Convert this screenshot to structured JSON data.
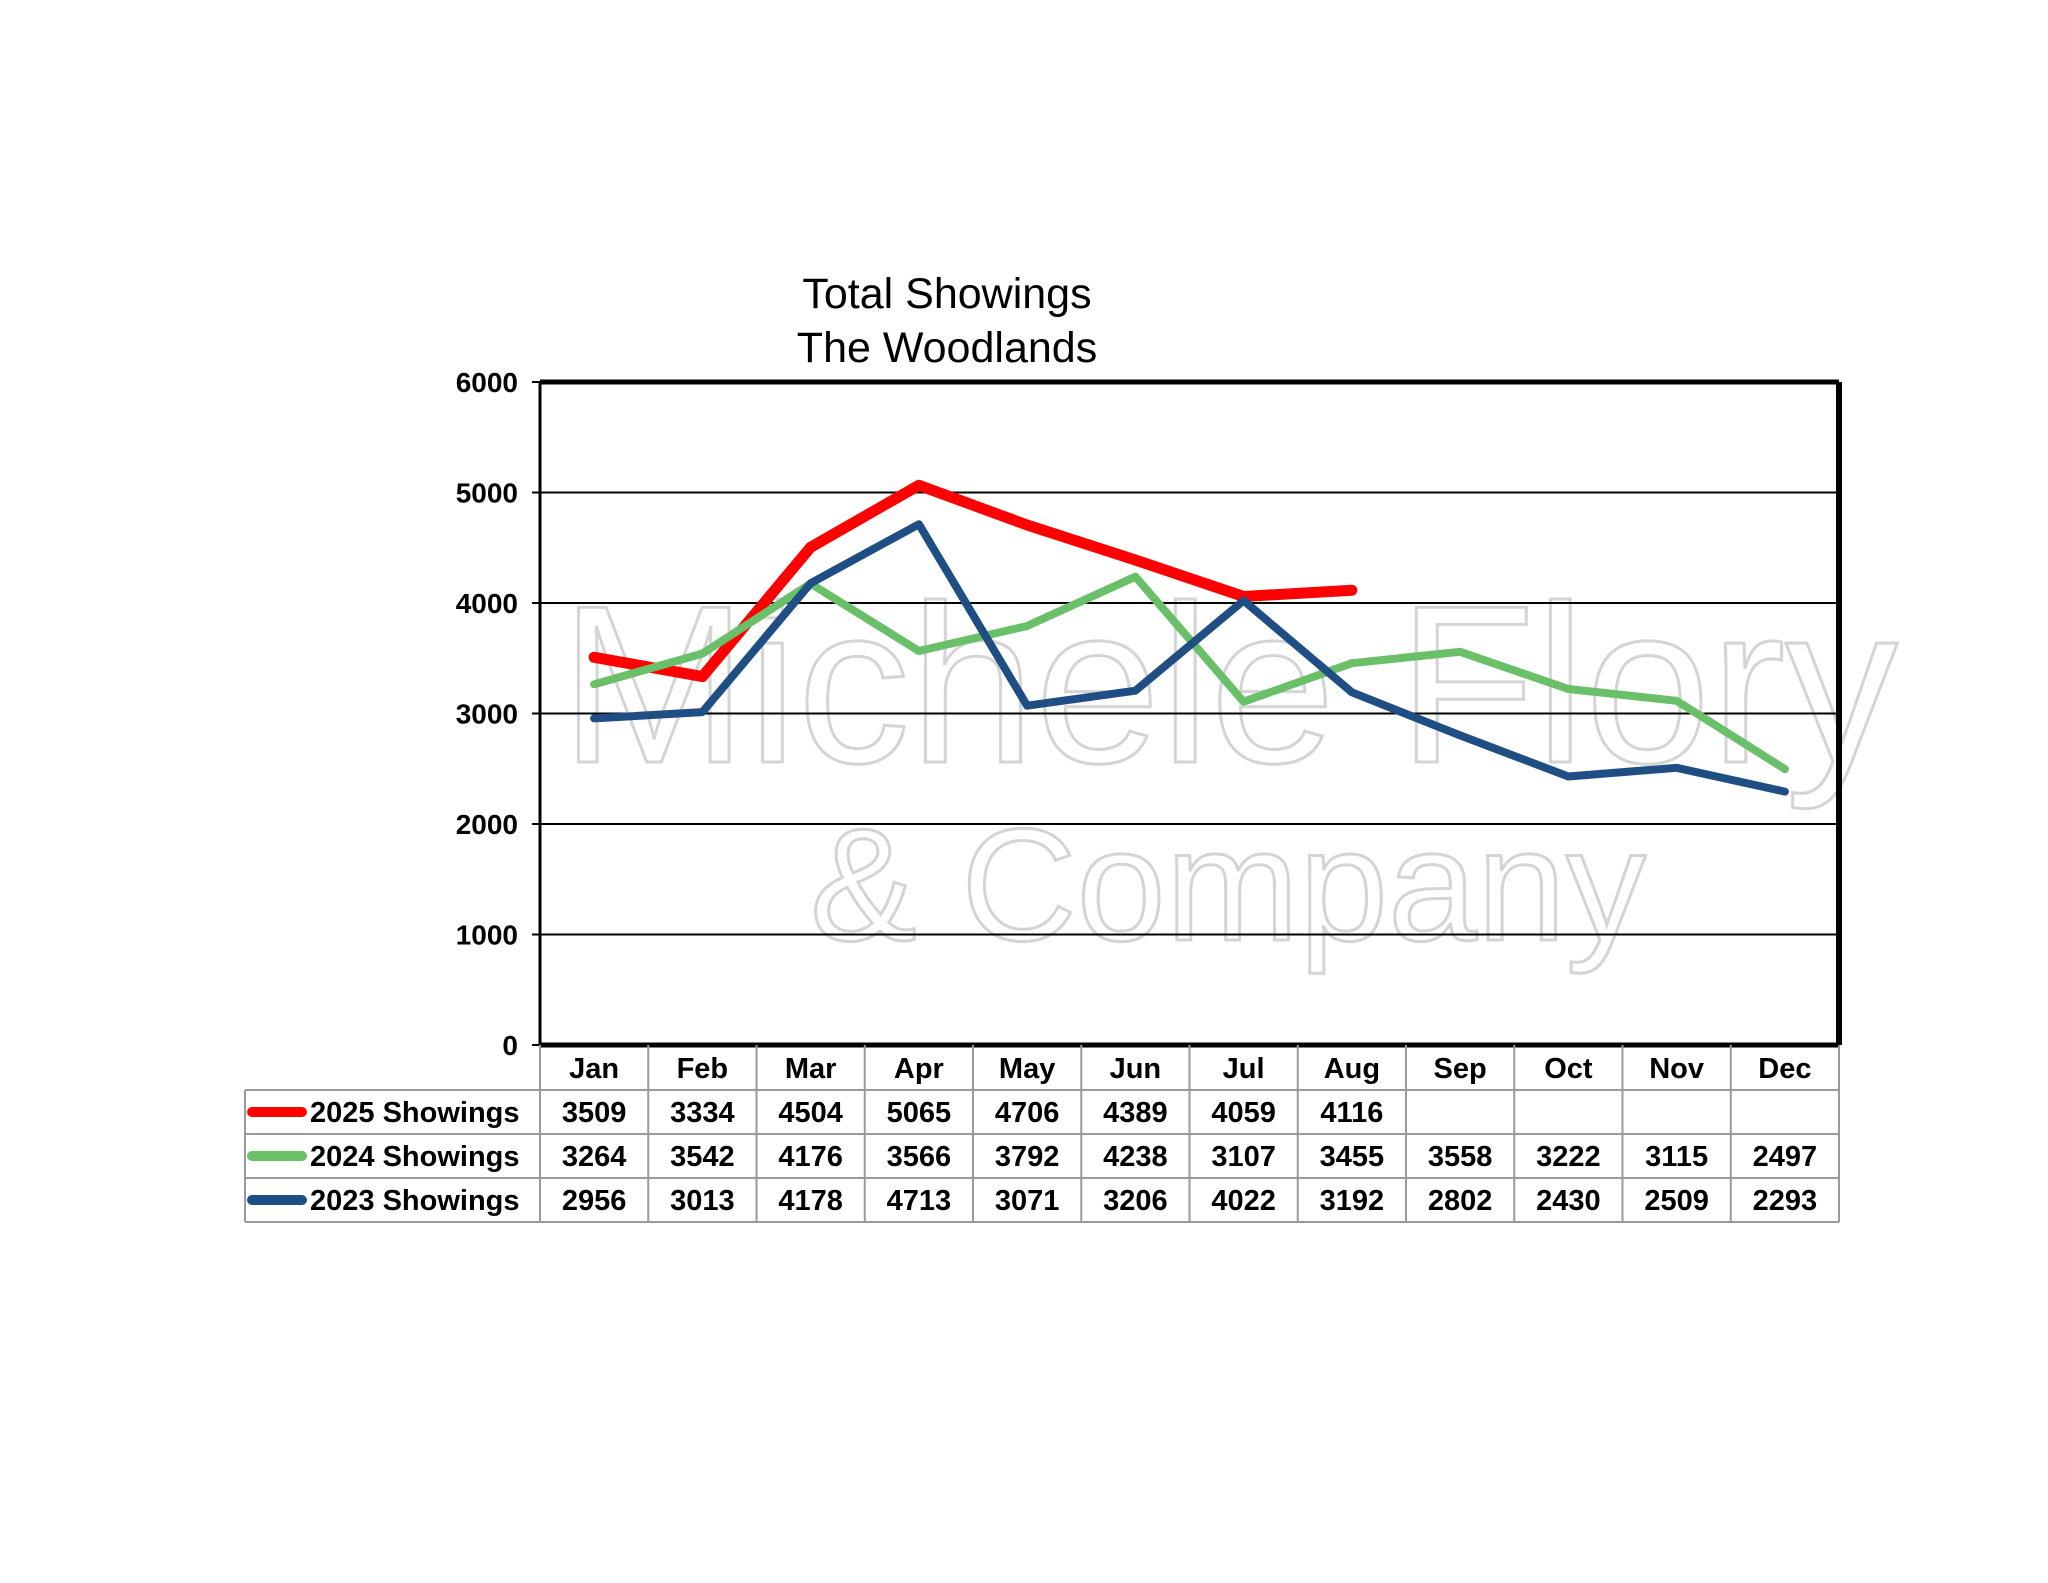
{
  "chart_data": {
    "type": "line",
    "title": "Total Showings",
    "subtitle": "The Woodlands",
    "categories": [
      "Jan",
      "Feb",
      "Mar",
      "Apr",
      "May",
      "Jun",
      "Jul",
      "Aug",
      "Sep",
      "Oct",
      "Nov",
      "Dec"
    ],
    "ylim": [
      0,
      6000
    ],
    "yticks": [
      0,
      1000,
      2000,
      3000,
      4000,
      5000,
      6000
    ],
    "grid": true,
    "legend": "data-table-left",
    "watermark": [
      "Michele Flory",
      "& Company"
    ],
    "series": [
      {
        "name": "2025 Showings",
        "color": "#ff0000",
        "values": [
          3509,
          3334,
          4504,
          5065,
          4706,
          4389,
          4059,
          4116,
          null,
          null,
          null,
          null
        ]
      },
      {
        "name": "2024 Showings",
        "color": "#6abf69",
        "values": [
          3264,
          3542,
          4176,
          3566,
          3792,
          4238,
          3107,
          3455,
          3558,
          3222,
          3115,
          2497
        ]
      },
      {
        "name": "2023 Showings",
        "color": "#1f4e85",
        "values": [
          2956,
          3013,
          4178,
          4713,
          3071,
          3206,
          4022,
          3192,
          2802,
          2430,
          2509,
          2293
        ]
      }
    ]
  }
}
